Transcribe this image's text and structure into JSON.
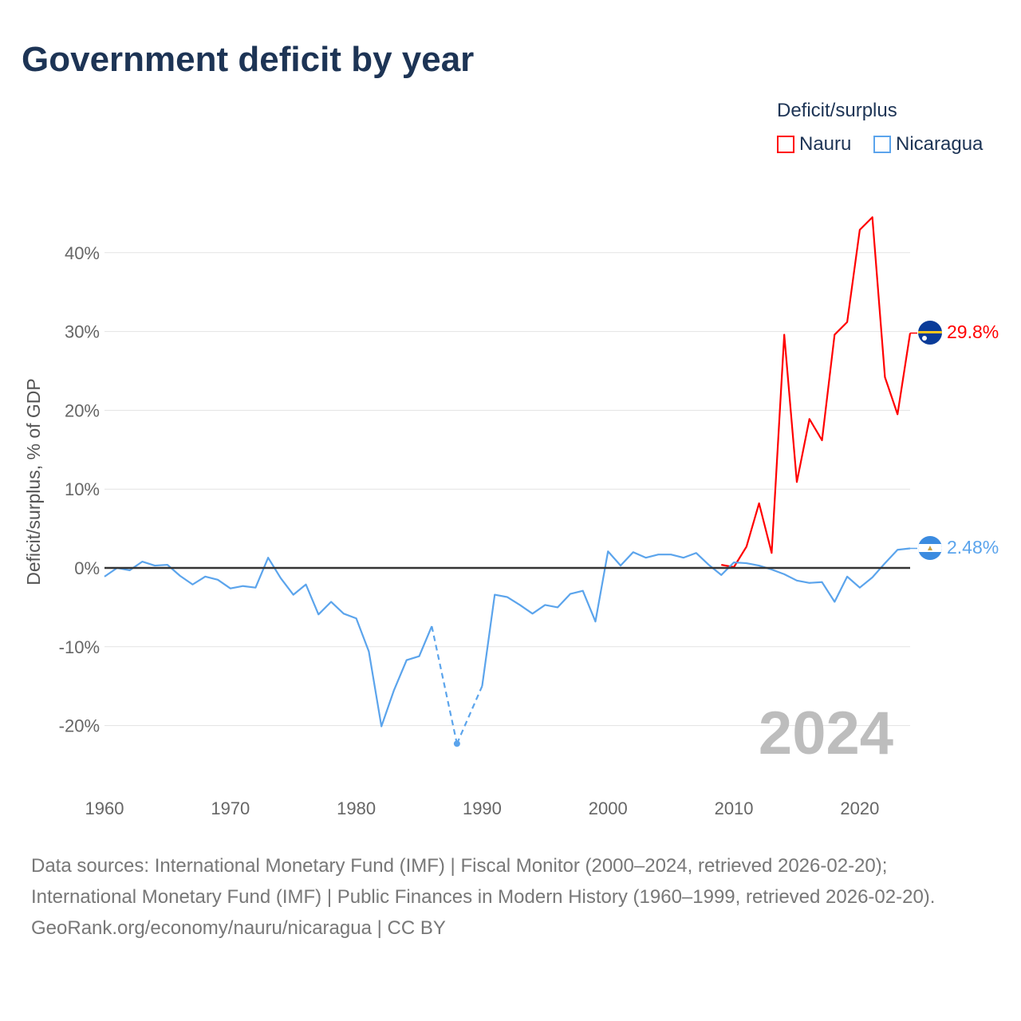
{
  "title": "Government deficit by year",
  "legend": {
    "title": "Deficit/surplus",
    "items": [
      "Nauru",
      "Nicaragua"
    ]
  },
  "year_label": "2024",
  "footer": {
    "sources": "Data sources: International Monetary Fund (IMF) | Fiscal Monitor (2000–2024, retrieved 2026-02-20); International Monetary Fund (IMF) | Public Finances in Modern History (1960–1999, retrieved 2026-02-20).",
    "credit": "GeoRank.org/economy/nauru/nicaragua | CC BY"
  },
  "chart_data": {
    "type": "line",
    "title": "Government deficit by year",
    "xlabel": "",
    "ylabel": "Deficit/surplus, % of GDP",
    "xlim": [
      1960,
      2024
    ],
    "ylim": [
      -27,
      48
    ],
    "x_ticks": [
      1960,
      1970,
      1980,
      1990,
      2000,
      2010,
      2020
    ],
    "x_tick_labels": [
      "1960",
      "1970",
      "1980",
      "1990",
      "2000",
      "2010",
      "2020"
    ],
    "y_ticks": [
      -20,
      -10,
      0,
      10,
      20,
      30,
      40
    ],
    "y_tick_labels": [
      "-20%",
      "-10%",
      "0%",
      "10%",
      "20%",
      "30%",
      "40%"
    ],
    "grid": true,
    "legend_position": "top-right",
    "series": [
      {
        "name": "Nauru",
        "color": "#ff0000",
        "end_label": "29.8%",
        "start_year": 2009,
        "values": [
          0.4,
          0.1,
          2.7,
          8.2,
          1.9,
          29.6,
          10.9,
          18.9,
          16.2,
          29.6,
          31.2,
          42.9,
          44.5,
          24.2,
          19.5,
          29.8
        ]
      },
      {
        "name": "Nicaragua",
        "color": "#5ba4ec",
        "end_label": "2.48%",
        "start_year": 1960,
        "values": [
          -1.1,
          0,
          -0.3,
          0.8,
          0.3,
          0.4,
          -1.0,
          -2.1,
          -1.1,
          -1.5,
          -2.6,
          -2.3,
          -2.5,
          1.3,
          -1.3,
          -3.4,
          -2.1,
          -5.9,
          -4.3,
          -5.8,
          -6.4,
          -10.6,
          -20.1,
          -15.5,
          -11.7,
          -11.2,
          -7.4,
          null,
          -22.3,
          null,
          -15.0,
          -3.4,
          -3.7,
          -4.7,
          -5.8,
          -4.7,
          -5.0,
          -3.3,
          -2.9,
          -6.8,
          2.1,
          0.3,
          2.0,
          1.3,
          1.7,
          1.7,
          1.3,
          1.9,
          0.4,
          -0.9,
          0.7,
          0.6,
          0.3,
          -0.2,
          -0.8,
          -1.6,
          -1.9,
          -1.8,
          -4.3,
          -1.1,
          -2.5,
          -1.2,
          0.6,
          2.3,
          2.48
        ]
      }
    ]
  }
}
